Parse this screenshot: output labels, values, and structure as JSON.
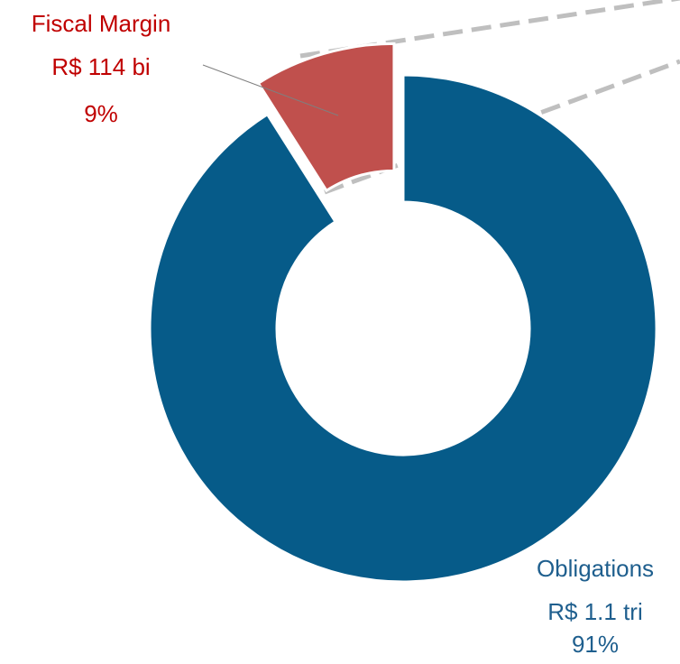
{
  "chart_data": {
    "type": "donut",
    "categories": [
      "Obligations",
      "Fiscal Margin"
    ],
    "values": [
      91,
      9
    ],
    "value_labels": [
      "91%",
      "9%"
    ],
    "amounts": [
      "R$ 1.1 tri",
      "R$ 114 bi"
    ],
    "colors": [
      "#065b89",
      "#c0504d"
    ],
    "label_colors": [
      "#1f5f8e",
      "#c00000"
    ]
  }
}
